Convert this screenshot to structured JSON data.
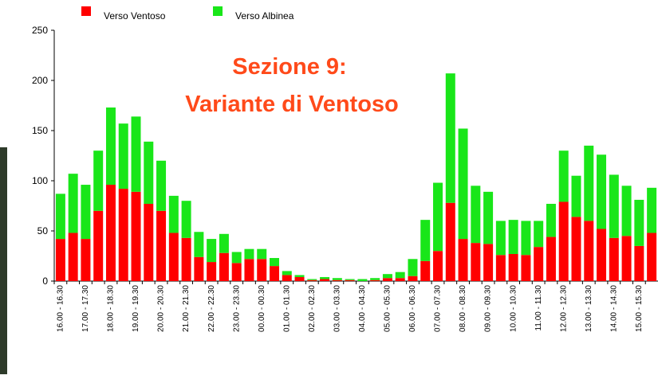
{
  "chart_data": {
    "type": "stacked_bar",
    "title": "Sezione 9:",
    "subtitle": "Variante di Ventoso",
    "categories": [
      "16.00 - 16.30",
      null,
      "17.00 - 17.30",
      null,
      "18.00 - 18.30",
      null,
      "19.00 - 19.30",
      null,
      "20.00 - 20.30",
      null,
      "21.00 - 21.30",
      null,
      "22.00 - 22.30",
      null,
      "23.00 - 23.30",
      null,
      "00.00 - 00.30",
      null,
      "01.00 - 01.30",
      null,
      "02.00 - 02.30",
      null,
      "03.00 - 03.30",
      null,
      "04.00 - 04.30",
      null,
      "05.00 - 05.30",
      null,
      "06.00 - 06.30",
      null,
      "07.00 - 07.30",
      null,
      "08.00 - 08.30",
      null,
      "09.00 - 09.30",
      null,
      "10.00 - 10.30",
      null,
      "11.00 - 11.30",
      null,
      "12.00 - 12.30",
      null,
      "13.00 - 13.30",
      null,
      "14.00 - 14.30",
      null,
      "15.00 - 15.30",
      null
    ],
    "series": [
      {
        "name": "Verso Ventoso",
        "color": "#ff0000",
        "values": [
          42,
          48,
          42,
          70,
          96,
          92,
          89,
          77,
          70,
          48,
          43,
          24,
          19,
          28,
          18,
          22,
          22,
          15,
          6,
          4,
          1,
          2,
          1,
          1,
          0,
          1,
          3,
          3,
          5,
          20,
          30,
          78,
          42,
          38,
          37,
          26,
          27,
          26,
          34,
          44,
          79,
          64,
          60,
          52,
          43,
          45,
          35,
          48
        ]
      },
      {
        "name": "Verso Albinea",
        "color": "#19e619",
        "values": [
          45,
          59,
          54,
          60,
          77,
          65,
          75,
          62,
          50,
          37,
          37,
          25,
          23,
          19,
          11,
          10,
          10,
          8,
          4,
          2,
          1,
          2,
          2,
          1,
          2,
          2,
          4,
          6,
          17,
          41,
          68,
          129,
          110,
          57,
          52,
          34,
          34,
          34,
          26,
          33,
          51,
          41,
          75,
          74,
          63,
          50,
          46,
          45
        ]
      }
    ],
    "ylim": [
      0,
      250
    ],
    "yticks": [
      0,
      50,
      100,
      150,
      200,
      250
    ],
    "grid": false
  }
}
